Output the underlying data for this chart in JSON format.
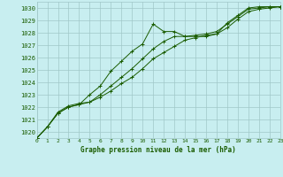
{
  "title": "Graphe pression niveau de la mer (hPa)",
  "bg_color": "#c8eef0",
  "grid_color": "#a0c8c8",
  "line_color": "#1a5c00",
  "xlim": [
    0,
    23
  ],
  "ylim": [
    1019.5,
    1030.5
  ],
  "yticks": [
    1020,
    1021,
    1022,
    1023,
    1024,
    1025,
    1026,
    1027,
    1028,
    1029,
    1030
  ],
  "xticks": [
    0,
    1,
    2,
    3,
    4,
    5,
    6,
    7,
    8,
    9,
    10,
    11,
    12,
    13,
    14,
    15,
    16,
    17,
    18,
    19,
    20,
    21,
    22,
    23
  ],
  "series1_x": [
    0,
    1,
    2,
    3,
    4,
    5,
    6,
    7,
    8,
    9,
    10,
    11,
    12,
    13,
    14,
    15,
    16,
    17,
    18,
    19,
    20,
    21,
    22,
    23
  ],
  "series1_y": [
    1019.5,
    1020.4,
    1021.5,
    1022.0,
    1022.2,
    1023.0,
    1023.7,
    1024.9,
    1025.7,
    1026.5,
    1027.1,
    1028.7,
    1028.1,
    1028.1,
    1027.7,
    1027.7,
    1027.7,
    1027.9,
    1028.8,
    1029.4,
    1030.0,
    1030.1,
    1030.1,
    1030.1
  ],
  "series2_x": [
    0,
    1,
    2,
    3,
    4,
    5,
    6,
    7,
    8,
    9,
    10,
    11,
    12,
    13,
    14,
    15,
    16,
    17,
    18,
    19,
    20,
    21,
    22,
    23
  ],
  "series2_y": [
    1019.5,
    1020.4,
    1021.5,
    1022.0,
    1022.2,
    1022.4,
    1022.8,
    1023.3,
    1023.9,
    1024.4,
    1025.1,
    1025.9,
    1026.4,
    1026.9,
    1027.4,
    1027.6,
    1027.8,
    1027.9,
    1028.4,
    1029.1,
    1029.7,
    1029.9,
    1030.0,
    1030.1
  ],
  "series3_x": [
    0,
    1,
    2,
    3,
    4,
    5,
    6,
    7,
    8,
    9,
    10,
    11,
    12,
    13,
    14,
    15,
    16,
    17,
    18,
    19,
    20,
    21,
    22,
    23
  ],
  "series3_y": [
    1019.5,
    1020.4,
    1021.6,
    1022.1,
    1022.3,
    1022.4,
    1023.0,
    1023.7,
    1024.4,
    1025.1,
    1025.9,
    1026.7,
    1027.3,
    1027.7,
    1027.7,
    1027.8,
    1027.9,
    1028.1,
    1028.7,
    1029.3,
    1029.9,
    1030.0,
    1030.1,
    1030.1
  ]
}
